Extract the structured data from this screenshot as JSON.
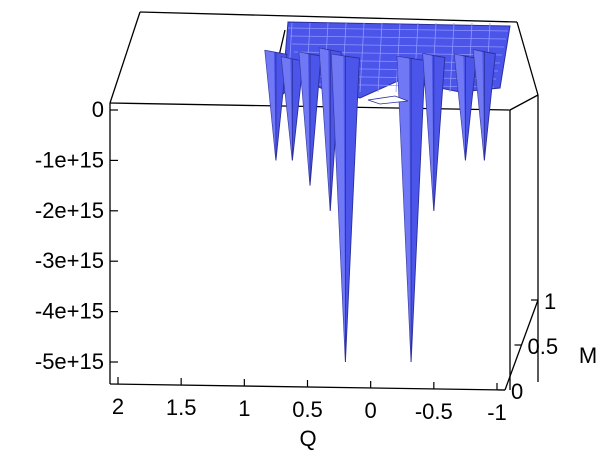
{
  "chart_data": {
    "type": "surface3d",
    "title": "",
    "xlabel": "Q",
    "ylabel": "M",
    "zlabel": "",
    "x_ticks": [
      "2",
      "1.5",
      "1",
      "0.5",
      "0",
      "-0.5",
      "-1"
    ],
    "y_ticks": [
      "0",
      "0.5",
      "1"
    ],
    "z_ticks": [
      "0",
      "-1e+15",
      "-2e+15",
      "-3e+15",
      "-4e+15",
      "-5e+15"
    ],
    "xlim": [
      2,
      -1
    ],
    "ylim": [
      0,
      1
    ],
    "zlim": [
      -5000000000000000.0,
      0
    ],
    "surface_color": "#4b55ea",
    "spikes": [
      {
        "q": 0.75,
        "z": -1000000000000000.0
      },
      {
        "q": 0.62,
        "z": -1000000000000000.0
      },
      {
        "q": 0.48,
        "z": -1500000000000000.0
      },
      {
        "q": 0.32,
        "z": -2000000000000000.0
      },
      {
        "q": 0.2,
        "z": -5000000000000000.0
      },
      {
        "q": -0.32,
        "z": -5000000000000000.0
      },
      {
        "q": -0.5,
        "z": -2000000000000000.0
      },
      {
        "q": -0.75,
        "z": -1000000000000000.0
      },
      {
        "q": -0.9,
        "z": -1000000000000000.0
      }
    ]
  }
}
